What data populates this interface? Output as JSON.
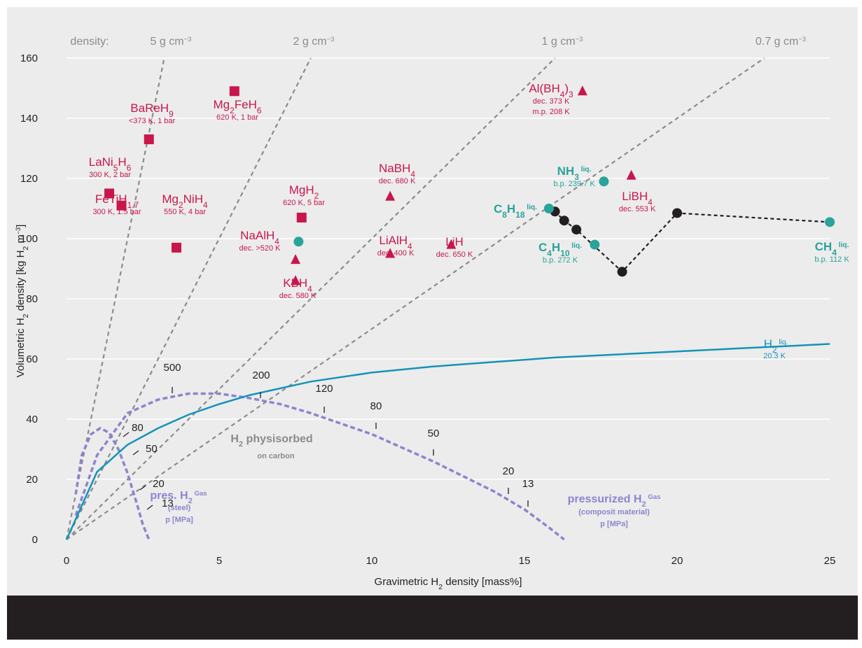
{
  "chart_data": {
    "type": "scatter",
    "xlabel_parts": [
      "Gravimetric H",
      "2",
      " density [mass%]"
    ],
    "ylabel_parts": [
      "Volumetric H",
      "2",
      " density [kg H",
      "2",
      " m",
      "−3",
      "]"
    ],
    "xlim": [
      0,
      25
    ],
    "ylim": [
      0,
      160
    ],
    "x_ticks": [
      0,
      5,
      10,
      15,
      20,
      25
    ],
    "y_ticks": [
      0,
      20,
      40,
      60,
      80,
      100,
      120,
      140,
      160
    ],
    "grid": "horizontal",
    "density_label": "density:",
    "density_lines": [
      {
        "label": "5 g cm",
        "exp": "−3",
        "slope": 50
      },
      {
        "label": "2 g cm",
        "exp": "−3",
        "slope": 20
      },
      {
        "label": "1 g cm",
        "exp": "−3",
        "slope": 10
      },
      {
        "label": "0.7 g cm",
        "exp": "−3",
        "slope": 7
      }
    ],
    "materials": [
      {
        "marker": "square",
        "x": 2.7,
        "y": 133,
        "name": "BaReH",
        "sub": "9",
        "cond": "<373 K, 1 bar"
      },
      {
        "marker": "square",
        "x": 5.5,
        "y": 149,
        "name": "Mg",
        "sub": "2",
        "name2": "FeH",
        "sub2": "6",
        "cond": "620 K, 1 bar"
      },
      {
        "marker": "square",
        "x": 1.4,
        "y": 115,
        "name": "LaNi",
        "sub": "5",
        "name2": "H",
        "sub2": "6",
        "cond": "300 K, 2 bar"
      },
      {
        "marker": "square",
        "x": 1.8,
        "y": 111,
        "name": "FeTiH",
        "sub": "1.7",
        "cond": "300 K, 1.5 bar"
      },
      {
        "marker": "square",
        "x": 3.6,
        "y": 97,
        "name": "Mg",
        "sub": "2",
        "name2": "NiH",
        "sub2": "4",
        "cond": "550 K, 4 bar"
      },
      {
        "marker": "square",
        "x": 7.7,
        "y": 107,
        "name": "MgH",
        "sub": "2",
        "cond": "620 K, 5 bar"
      },
      {
        "marker": "triangle",
        "x": 7.5,
        "y": 93,
        "name": "NaAlH",
        "sub": "4",
        "cond": "dec. >520 K"
      },
      {
        "marker": "triangle",
        "x": 7.5,
        "y": 86,
        "name": "KBH",
        "sub": "4",
        "cond": "dec. 580 K"
      },
      {
        "marker": "triangle",
        "x": 10.6,
        "y": 114,
        "name": "NaBH",
        "sub": "4",
        "cond": "dec. 680 K"
      },
      {
        "marker": "triangle",
        "x": 10.6,
        "y": 95,
        "name": "LiAlH",
        "sub": "4",
        "cond": "dec. 400 K"
      },
      {
        "marker": "triangle",
        "x": 12.6,
        "y": 98,
        "name": "LiH",
        "cond": "dec. 650 K"
      },
      {
        "marker": "triangle",
        "x": 16.9,
        "y": 149,
        "name": "Al(BH",
        "sub": "4",
        "name2": ")",
        "sub2": "3",
        "cond": "dec. 373 K",
        "cond2": "m.p. 208 K"
      },
      {
        "marker": "triangle",
        "x": 18.5,
        "y": 121,
        "name": "LiBH",
        "sub": "4",
        "cond": "dec. 553 K"
      },
      {
        "marker": "circle",
        "x": 7.6,
        "y": 99,
        "name": ""
      },
      {
        "marker": "circle",
        "x": 15.8,
        "y": 110,
        "name": "C",
        "sub": "8",
        "name2": "H",
        "sub2": "18",
        "sup": " liq."
      },
      {
        "marker": "circle",
        "x": 17.6,
        "y": 119,
        "name": "NH",
        "sub": "3",
        "sup": " liq.",
        "cond": "b.p. 239.7 K"
      },
      {
        "marker": "circle",
        "x": 17.3,
        "y": 98,
        "name": "C",
        "sub": "4",
        "name2": "H",
        "sub2": "10",
        "sup": " liq.",
        "cond": "b.p. 272 K"
      },
      {
        "marker": "circle",
        "x": 25.0,
        "y": 105.5,
        "name": "CH",
        "sub": "4",
        "sup": " liq.",
        "cond": "b.p. 112 K"
      }
    ],
    "hydrocarbon_chain": [
      [
        15.8,
        110
      ],
      [
        16.0,
        109
      ],
      [
        16.3,
        106
      ],
      [
        16.7,
        103
      ],
      [
        18.2,
        89
      ],
      [
        20.0,
        108.5
      ],
      [
        25.0,
        105.5
      ]
    ],
    "h2_liquid": {
      "name": "H",
      "sub": "2",
      "sup": " liq.",
      "cond": "20.3 K",
      "x": [
        0,
        1,
        2,
        3,
        4,
        5,
        6,
        8,
        10,
        12,
        14,
        16,
        18,
        20,
        22,
        24,
        25
      ],
      "y": [
        0,
        22.5,
        31.5,
        37,
        41.5,
        45,
        48,
        52.5,
        55.5,
        57.5,
        59,
        60.5,
        61.5,
        62.5,
        63.5,
        64.5,
        65
      ]
    },
    "pressurized_steel": {
      "name": "pres. H",
      "sub": "2",
      "sup": " Gas",
      "note": "(steel)",
      "unit": "p [MPa]",
      "x": [
        0.3,
        0.5,
        0.8,
        1.1,
        1.4,
        1.7,
        2.0,
        2.3,
        2.5,
        2.7
      ],
      "y": [
        15,
        28,
        35,
        37,
        35.5,
        30,
        22,
        12,
        5,
        0
      ],
      "labels": [
        "80",
        "50",
        "20",
        "13"
      ]
    },
    "pressurized_composite": {
      "name": "pressurized H",
      "sub": "2",
      "sup": " Gas",
      "note": "(composit material)",
      "unit": "p [MPa]",
      "x": [
        0.3,
        1,
        2,
        3,
        4,
        5,
        6,
        7,
        8,
        9,
        10,
        11,
        12,
        13,
        14,
        15,
        15.8,
        16.3
      ],
      "y": [
        8,
        28,
        42,
        46.5,
        48.5,
        48.5,
        47,
        45,
        42,
        38.5,
        35,
        30.5,
        26,
        21,
        16,
        10,
        4,
        0
      ],
      "labels": [
        "500",
        "200",
        "120",
        "80",
        "50",
        "20",
        "13"
      ]
    },
    "physisorbed": {
      "name": "H",
      "sub": "2",
      "rest": " physisorbed",
      "note": "on carbon"
    },
    "colors": {
      "red": "#c8164b",
      "teal": "#2aa39a",
      "blue": "#1493b8",
      "lavender": "#8a85cf",
      "grey": "#8b8b8b",
      "black": "#231f20",
      "background": "#ececec"
    }
  }
}
